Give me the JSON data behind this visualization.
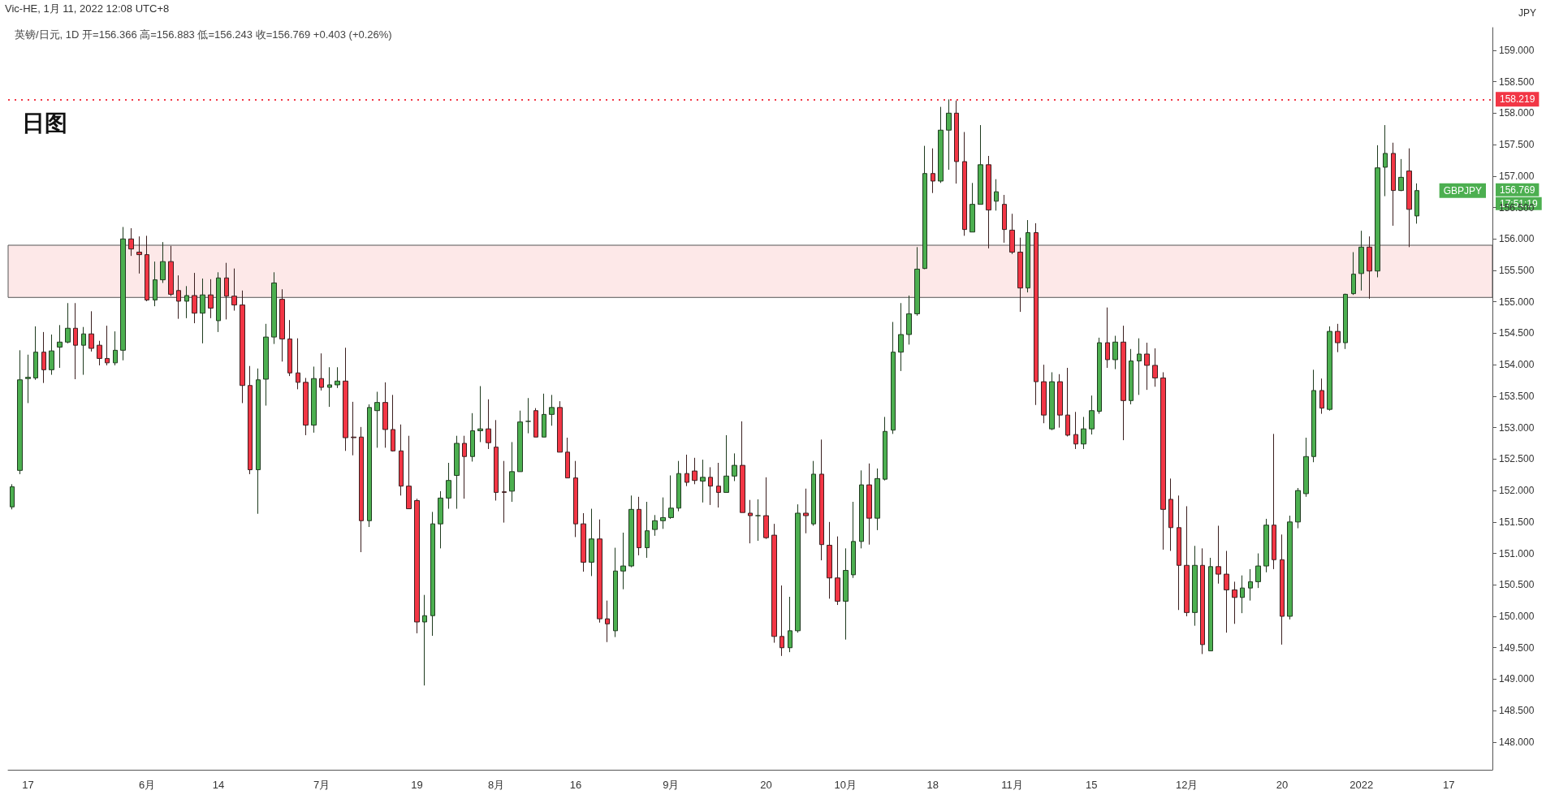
{
  "chart_data": {
    "type": "candlestick",
    "title": "日图",
    "subtitle": "英镑/日元, 1D 开=156.366 高=156.883 低=156.243 收=156.769 +0.403 (+0.26%)",
    "ylabel": "JPY",
    "annotations": [
      {
        "text": "Vic-HE, 1月 11, 2022 12:08 UTC+8"
      },
      "GBPJPY",
      "156.769",
      "17:51:19"
    ],
    "categories": [
      null,
      null,
      "17",
      null,
      null,
      null,
      null,
      null,
      null,
      null,
      null,
      null,
      null,
      null,
      null,
      null,
      null,
      "6月",
      null,
      null,
      null,
      null,
      null,
      null,
      null,
      null,
      "14",
      null,
      null,
      null,
      null,
      null,
      null,
      null,
      null,
      null,
      null,
      null,
      null,
      "7月",
      null,
      null,
      null,
      null,
      null,
      null,
      null,
      null,
      null,
      null,
      null,
      "19",
      null,
      null,
      null,
      null,
      null,
      null,
      null,
      null,
      null,
      "8月",
      null,
      null,
      null,
      null,
      null,
      null,
      null,
      null,
      null,
      "16",
      null,
      null,
      null,
      null,
      null,
      null,
      null,
      null,
      null,
      null,
      null,
      "9月",
      null,
      null,
      null,
      null,
      null,
      null,
      null,
      null,
      null,
      null,
      null,
      "20",
      null,
      null,
      null,
      null,
      null,
      null,
      null,
      null,
      null,
      "10月",
      null,
      null,
      null,
      null,
      null,
      null,
      null,
      null,
      null,
      null,
      "18",
      null,
      null,
      null,
      null,
      null,
      null,
      null,
      null,
      null,
      "11月",
      null,
      null,
      null,
      null,
      null,
      null,
      null,
      null,
      null,
      "15",
      null,
      null,
      null,
      null,
      null,
      null,
      null,
      null,
      null,
      null,
      null,
      "12月",
      null,
      null,
      null,
      null,
      null,
      null,
      null,
      null,
      null,
      null,
      null,
      "20",
      null,
      null,
      null,
      null,
      null,
      null,
      null,
      null,
      null,
      "2022",
      null,
      null,
      null,
      null,
      null,
      null,
      null,
      null,
      null,
      null,
      "17",
      null,
      null,
      null,
      null,
      null
    ],
    "ohlc": [
      [
        151.74,
        152.1,
        151.7,
        152.06
      ],
      [
        152.32,
        154.23,
        152.26,
        153.76
      ],
      [
        153.78,
        154.16,
        153.39,
        153.8
      ],
      [
        153.79,
        154.61,
        153.76,
        154.2
      ],
      [
        154.2,
        154.52,
        153.71,
        153.92
      ],
      [
        153.92,
        154.48,
        153.84,
        154.22
      ],
      [
        154.28,
        154.63,
        153.95,
        154.36
      ],
      [
        154.36,
        154.98,
        154.34,
        154.58
      ],
      [
        154.58,
        154.98,
        153.77,
        154.31
      ],
      [
        154.31,
        154.6,
        153.84,
        154.49
      ],
      [
        154.49,
        154.85,
        154.21,
        154.26
      ],
      [
        154.31,
        154.38,
        153.99,
        154.1
      ],
      [
        154.1,
        154.62,
        153.99,
        154.03
      ],
      [
        154.03,
        154.53,
        153.99,
        154.23
      ],
      [
        154.23,
        156.19,
        154.07,
        156.0
      ],
      [
        156.0,
        156.17,
        155.73,
        155.84
      ],
      [
        155.79,
        156.04,
        155.45,
        155.75
      ],
      [
        155.75,
        156.05,
        155.01,
        155.03
      ],
      [
        155.03,
        155.64,
        154.93,
        155.35
      ],
      [
        155.35,
        155.95,
        155.3,
        155.64
      ],
      [
        155.64,
        155.89,
        155.09,
        155.12
      ],
      [
        155.18,
        155.42,
        154.73,
        155.01
      ],
      [
        155.01,
        155.25,
        154.74,
        155.1
      ],
      [
        155.1,
        155.46,
        154.66,
        154.82
      ],
      [
        154.82,
        155.37,
        154.34,
        155.11
      ],
      [
        155.11,
        155.36,
        154.74,
        154.9
      ],
      [
        154.7,
        155.47,
        154.52,
        155.38
      ],
      [
        155.38,
        155.62,
        154.72,
        155.09
      ],
      [
        155.09,
        155.53,
        154.86,
        154.95
      ],
      [
        154.95,
        155.18,
        153.39,
        153.67
      ],
      [
        153.67,
        153.98,
        152.26,
        152.33
      ],
      [
        152.33,
        153.94,
        151.63,
        153.76
      ],
      [
        153.77,
        154.65,
        153.35,
        154.44
      ],
      [
        154.44,
        155.47,
        154.33,
        155.3
      ],
      [
        155.04,
        155.2,
        154.05,
        154.41
      ],
      [
        154.41,
        154.71,
        153.82,
        153.87
      ],
      [
        153.87,
        154.42,
        153.61,
        153.72
      ],
      [
        153.72,
        153.79,
        152.88,
        153.04
      ],
      [
        153.04,
        153.97,
        152.92,
        153.78
      ],
      [
        153.78,
        154.18,
        153.59,
        153.64
      ],
      [
        153.64,
        153.96,
        153.33,
        153.68
      ],
      [
        153.68,
        153.96,
        153.63,
        153.74
      ],
      [
        153.74,
        154.27,
        152.63,
        152.84
      ],
      [
        152.85,
        153.41,
        152.56,
        152.84
      ],
      [
        152.85,
        153.01,
        151.02,
        151.52
      ],
      [
        151.52,
        153.37,
        151.42,
        153.32
      ],
      [
        153.27,
        153.57,
        152.68,
        153.4
      ],
      [
        153.4,
        153.72,
        152.68,
        152.97
      ],
      [
        152.97,
        153.52,
        152.62,
        152.63
      ],
      [
        152.63,
        153.05,
        151.92,
        152.07
      ],
      [
        152.07,
        152.87,
        151.71,
        151.71
      ],
      [
        151.84,
        151.87,
        149.73,
        149.91
      ],
      [
        149.91,
        150.34,
        148.9,
        150.01
      ],
      [
        150.01,
        151.66,
        149.69,
        151.47
      ],
      [
        151.47,
        151.99,
        151.08,
        151.88
      ],
      [
        151.88,
        152.44,
        151.71,
        152.16
      ],
      [
        152.24,
        152.87,
        151.71,
        152.75
      ],
      [
        152.75,
        152.87,
        151.87,
        152.54
      ],
      [
        152.54,
        153.23,
        152.46,
        152.95
      ],
      [
        152.95,
        153.66,
        152.77,
        152.98
      ],
      [
        152.98,
        153.45,
        152.66,
        152.76
      ],
      [
        152.69,
        153.12,
        151.84,
        151.97
      ],
      [
        151.98,
        152.47,
        151.49,
        151.97
      ],
      [
        151.99,
        152.77,
        151.82,
        152.3
      ],
      [
        152.3,
        153.27,
        152.3,
        153.09
      ],
      [
        153.1,
        153.47,
        152.91,
        153.1
      ],
      [
        153.27,
        153.31,
        152.85,
        152.85
      ],
      [
        152.85,
        153.54,
        152.85,
        153.21
      ],
      [
        153.21,
        153.52,
        153.03,
        153.32
      ],
      [
        153.32,
        153.42,
        152.61,
        152.61
      ],
      [
        152.61,
        152.84,
        152.2,
        152.2
      ],
      [
        152.2,
        152.47,
        151.26,
        151.47
      ],
      [
        151.47,
        151.64,
        150.71,
        150.86
      ],
      [
        150.86,
        151.71,
        150.64,
        151.23
      ],
      [
        151.23,
        151.54,
        149.9,
        149.96
      ],
      [
        149.96,
        150.25,
        149.59,
        149.88
      ],
      [
        149.77,
        151.09,
        149.67,
        150.72
      ],
      [
        150.72,
        151.33,
        150.43,
        150.8
      ],
      [
        150.8,
        151.92,
        150.78,
        151.7
      ],
      [
        151.7,
        151.9,
        150.97,
        151.09
      ],
      [
        151.09,
        151.82,
        150.93,
        151.36
      ],
      [
        151.38,
        151.61,
        151.28,
        151.52
      ],
      [
        151.52,
        151.89,
        151.39,
        151.57
      ],
      [
        151.57,
        152.24,
        151.55,
        151.72
      ],
      [
        151.72,
        152.47,
        151.67,
        152.27
      ],
      [
        152.27,
        152.57,
        152.07,
        152.13
      ],
      [
        152.31,
        152.52,
        152.1,
        152.16
      ],
      [
        152.15,
        152.49,
        151.81,
        152.21
      ],
      [
        152.21,
        152.37,
        151.77,
        152.07
      ],
      [
        152.07,
        152.44,
        151.73,
        151.97
      ],
      [
        151.97,
        152.88,
        151.97,
        152.23
      ],
      [
        152.23,
        152.59,
        152.15,
        152.4
      ],
      [
        152.4,
        153.1,
        151.65,
        151.65
      ],
      [
        151.64,
        151.85,
        151.16,
        151.6
      ],
      [
        151.6,
        151.86,
        151.2,
        151.6
      ],
      [
        151.6,
        152.21,
        151.23,
        151.25
      ],
      [
        151.29,
        151.47,
        149.58,
        149.68
      ],
      [
        149.68,
        150.49,
        149.37,
        149.5
      ],
      [
        149.5,
        150.31,
        149.43,
        149.77
      ],
      [
        149.77,
        151.78,
        149.74,
        151.64
      ],
      [
        151.64,
        152.03,
        151.32,
        151.6
      ],
      [
        151.47,
        152.47,
        151.44,
        152.26
      ],
      [
        152.26,
        152.81,
        150.89,
        151.14
      ],
      [
        151.13,
        151.5,
        150.28,
        150.61
      ],
      [
        150.61,
        151.27,
        150.18,
        150.24
      ],
      [
        150.24,
        151.08,
        149.63,
        150.73
      ],
      [
        150.66,
        151.82,
        150.61,
        151.19
      ],
      [
        151.19,
        152.32,
        151.08,
        152.09
      ],
      [
        152.09,
        152.43,
        151.14,
        151.56
      ],
      [
        151.56,
        152.35,
        151.37,
        152.19
      ],
      [
        152.18,
        153.17,
        152.16,
        152.94
      ],
      [
        152.96,
        154.68,
        152.9,
        154.2
      ],
      [
        154.2,
        154.98,
        153.9,
        154.48
      ],
      [
        154.48,
        155.1,
        154.32,
        154.81
      ],
      [
        154.81,
        155.87,
        154.78,
        155.52
      ],
      [
        155.53,
        157.48,
        155.52,
        157.04
      ],
      [
        157.04,
        157.44,
        156.73,
        156.92
      ],
      [
        156.92,
        158.1,
        156.89,
        157.73
      ],
      [
        157.73,
        158.219,
        157.1,
        158.0
      ],
      [
        158.0,
        158.2,
        156.88,
        157.23
      ],
      [
        157.23,
        157.7,
        156.05,
        156.15
      ],
      [
        156.11,
        156.89,
        156.11,
        156.55
      ],
      [
        156.55,
        157.81,
        156.55,
        157.18
      ],
      [
        157.18,
        157.32,
        155.85,
        156.46
      ],
      [
        156.6,
        156.95,
        156.45,
        156.75
      ],
      [
        156.55,
        156.7,
        155.94,
        156.15
      ],
      [
        156.14,
        156.4,
        155.76,
        155.79
      ],
      [
        155.79,
        156.02,
        154.84,
        155.22
      ],
      [
        155.22,
        156.3,
        155.15,
        156.1
      ],
      [
        156.1,
        156.25,
        153.36,
        153.73
      ],
      [
        153.73,
        154.0,
        153.07,
        153.2
      ],
      [
        152.98,
        153.88,
        152.96,
        153.73
      ],
      [
        153.73,
        153.85,
        153.0,
        153.2
      ],
      [
        153.2,
        153.95,
        152.86,
        152.88
      ],
      [
        152.89,
        153.25,
        152.66,
        152.74
      ],
      [
        152.74,
        153.17,
        152.66,
        152.98
      ],
      [
        152.98,
        153.51,
        152.89,
        153.27
      ],
      [
        153.26,
        154.43,
        153.22,
        154.35
      ],
      [
        154.35,
        154.91,
        153.95,
        154.08
      ],
      [
        154.08,
        154.46,
        153.93,
        154.36
      ],
      [
        154.36,
        154.62,
        152.8,
        153.43
      ],
      [
        153.43,
        154.25,
        153.37,
        154.06
      ],
      [
        154.06,
        154.42,
        153.52,
        154.17
      ],
      [
        154.17,
        154.35,
        153.6,
        153.99
      ],
      [
        153.99,
        154.26,
        153.65,
        153.79
      ],
      [
        153.79,
        153.88,
        151.06,
        151.7
      ],
      [
        151.86,
        152.19,
        151.04,
        151.41
      ],
      [
        151.41,
        151.92,
        150.1,
        150.81
      ],
      [
        150.81,
        151.75,
        150.0,
        150.06
      ],
      [
        150.06,
        151.12,
        149.85,
        150.81
      ],
      [
        150.81,
        151.08,
        149.4,
        149.55
      ],
      [
        149.45,
        150.93,
        149.45,
        150.79
      ],
      [
        150.79,
        151.44,
        150.52,
        150.67
      ],
      [
        150.67,
        151.04,
        149.74,
        150.42
      ],
      [
        150.42,
        150.55,
        149.88,
        150.3
      ],
      [
        150.3,
        150.65,
        150.05,
        150.45
      ],
      [
        150.45,
        150.75,
        150.25,
        150.55
      ],
      [
        150.55,
        151.0,
        150.45,
        150.8
      ],
      [
        150.8,
        151.55,
        150.7,
        151.45
      ],
      [
        151.45,
        152.9,
        150.75,
        150.9
      ],
      [
        150.9,
        151.3,
        149.55,
        150.0
      ],
      [
        150.0,
        151.6,
        149.95,
        151.5
      ],
      [
        151.5,
        152.04,
        151.4,
        152.0
      ],
      [
        151.95,
        152.84,
        151.9,
        152.54
      ],
      [
        152.54,
        153.92,
        152.45,
        153.59
      ],
      [
        153.59,
        153.78,
        153.22,
        153.31
      ],
      [
        153.29,
        154.61,
        153.27,
        154.53
      ],
      [
        154.53,
        154.65,
        154.2,
        154.35
      ],
      [
        154.35,
        155.13,
        154.25,
        155.12
      ],
      [
        155.13,
        155.79,
        155.11,
        155.44
      ],
      [
        155.45,
        156.13,
        155.18,
        155.87
      ],
      [
        155.87,
        156.04,
        155.05,
        155.49
      ],
      [
        155.49,
        157.49,
        155.39,
        157.13
      ],
      [
        157.14,
        157.81,
        156.68,
        157.36
      ],
      [
        157.36,
        157.53,
        156.21,
        156.77
      ],
      [
        156.77,
        157.27,
        156.76,
        156.98
      ],
      [
        157.08,
        157.44,
        155.87,
        156.47
      ],
      [
        156.366,
        156.883,
        156.243,
        156.769
      ],
      null,
      null,
      null,
      null,
      null,
      null,
      null,
      null,
      null
    ],
    "ylim": [
      147.56,
      159.36
    ],
    "yticks": [
      {
        "value": 148,
        "label": "148.000"
      },
      {
        "value": 148.5,
        "label": "148.500"
      },
      {
        "value": 149,
        "label": "149.000"
      },
      {
        "value": 149.5,
        "label": "149.500"
      },
      {
        "value": 150,
        "label": "150.000"
      },
      {
        "value": 150.5,
        "label": "150.500"
      },
      {
        "value": 151,
        "label": "151.000"
      },
      {
        "value": 151.5,
        "label": "151.500"
      },
      {
        "value": 152,
        "label": "152.000"
      },
      {
        "value": 152.5,
        "label": "152.500"
      },
      {
        "value": 153,
        "label": "153.000"
      },
      {
        "value": 153.5,
        "label": "153.500"
      },
      {
        "value": 154,
        "label": "154.000"
      },
      {
        "value": 154.5,
        "label": "154.500"
      },
      {
        "value": 155,
        "label": "155.000"
      },
      {
        "value": 155.5,
        "label": "155.500"
      },
      {
        "value": 156,
        "label": "156.000"
      },
      {
        "value": 156.5,
        "label": "156.500"
      },
      {
        "value": 157,
        "label": "157.000"
      },
      {
        "value": 157.5,
        "label": "157.500"
      },
      {
        "value": 158,
        "label": "158.000"
      },
      {
        "value": 158.5,
        "label": "158.500"
      },
      {
        "value": 159,
        "label": "159.000"
      }
    ],
    "ref_lines": [
      {
        "axis": "y",
        "value": 158.219,
        "label": "158.219",
        "color": "#f23645",
        "line_style": "dotted"
      }
    ],
    "bands": [
      {
        "axis": "y",
        "from": 155.07,
        "to": 155.9,
        "color": "#fde8e8"
      }
    ],
    "grid": false
  }
}
